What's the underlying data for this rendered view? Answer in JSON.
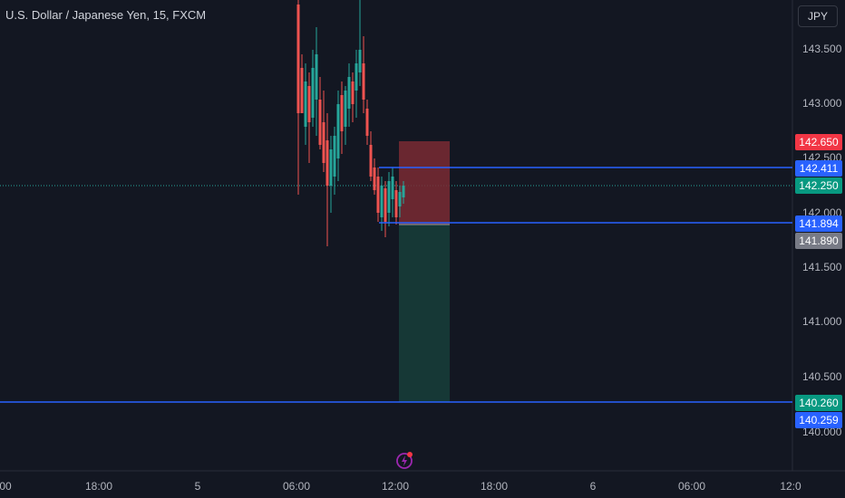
{
  "header": {
    "symbol_title": "U.S. Dollar / Japanese Yen, 15, FXCM",
    "currency_button": "JPY"
  },
  "axis": {
    "price_ticks": [
      "143.500",
      "143.000",
      "142.500",
      "142.000",
      "141.500",
      "141.000",
      "140.500",
      "140.000"
    ],
    "time_ticks": [
      "00",
      "18:00",
      "5",
      "06:00",
      "12:00",
      "18:00",
      "6",
      "06:00",
      "12:0"
    ]
  },
  "price_labels": {
    "stop_loss": "142.650",
    "upper_line": "142.411",
    "current": "142.250",
    "entry_line": "141.894",
    "entry": "141.890",
    "take_profit": "140.260",
    "lower_line": "140.259"
  },
  "colors": {
    "background": "#131722",
    "up": "#26a69a",
    "down": "#ef5350",
    "line": "#2962ff",
    "risk_zone": "#ef5350",
    "reward_zone": "#26a69a"
  },
  "icons": {
    "bolt": "lightning-bolt-icon"
  }
}
